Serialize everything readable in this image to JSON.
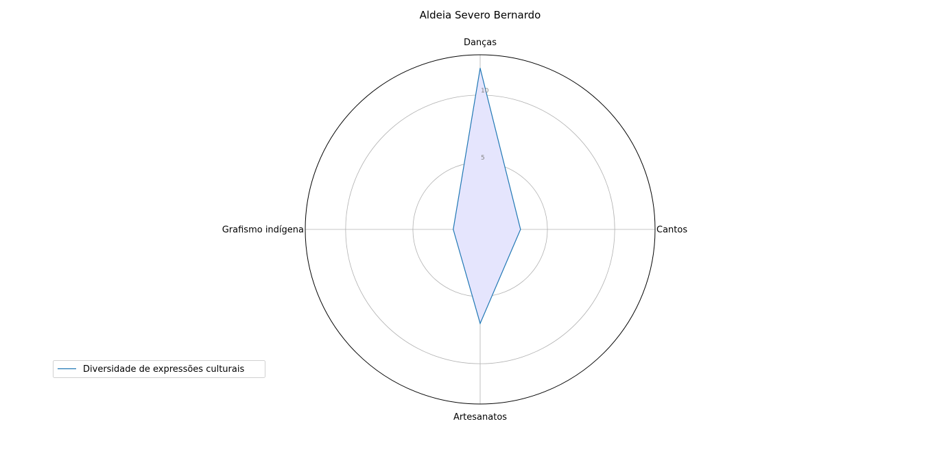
{
  "chart_data": {
    "type": "radar",
    "title": "Aldeia Severo Bernardo",
    "categories": [
      "Danças",
      "Cantos",
      "Artesanatos",
      "Grafismo indígena"
    ],
    "series": [
      {
        "name": "Diversidade de expressões culturais",
        "values": [
          12,
          3,
          7,
          2
        ]
      }
    ],
    "rlim": [
      0,
      13
    ],
    "rticks": [
      5,
      10
    ],
    "rtick_labels": [
      "5",
      "10"
    ],
    "grid": true,
    "legend_position": "lower-left",
    "colors": {
      "line": "#1f77b4",
      "fill": "#e5e5fd",
      "grid": "#b0b0b0",
      "outer_circle": "#000000",
      "tick_label": "#808080"
    }
  }
}
